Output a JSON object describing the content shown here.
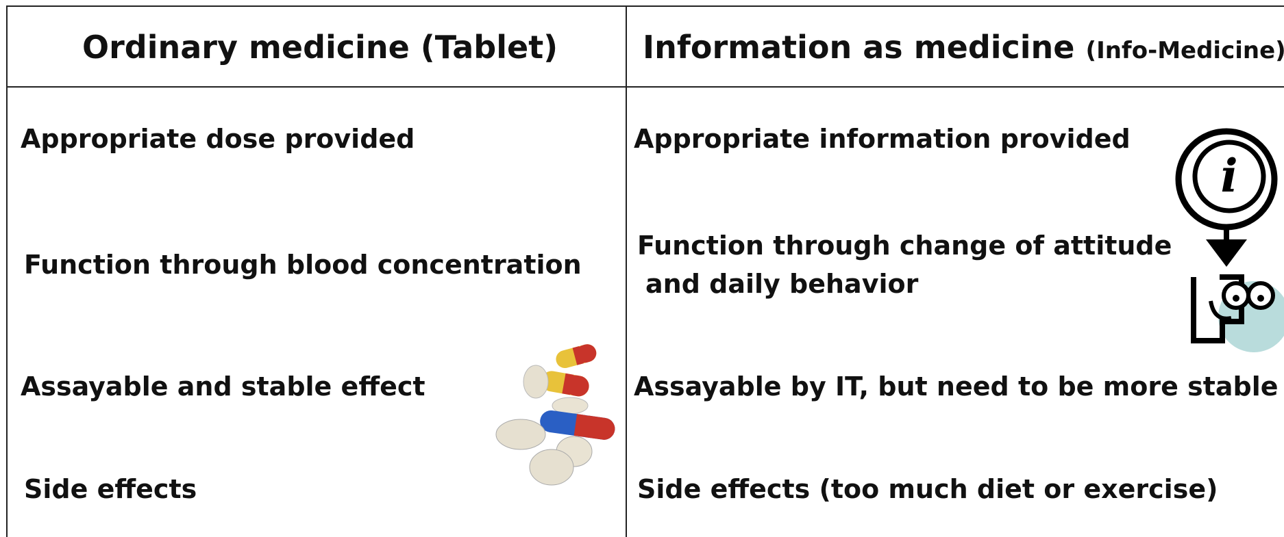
{
  "table": {
    "header": [
      {
        "text": "Ordinary medicine (Tablet)"
      },
      {
        "text": "Information as medicine",
        "note": "(Info-Medicine)"
      }
    ],
    "rows": [
      [
        [
          "Appropriate dose provided"
        ],
        [
          "Appropriate information provided"
        ]
      ],
      [
        [
          "Function through blood concentration"
        ],
        [
          "Function through change of attitude",
          "and daily behavior"
        ]
      ],
      [
        [
          "Assayable and stable effect"
        ],
        [
          "Assayable by IT, but need to be more stable"
        ]
      ],
      [
        [
          "Side effects"
        ],
        [
          "Side effects (too much diet or exercise)"
        ]
      ]
    ]
  }
}
